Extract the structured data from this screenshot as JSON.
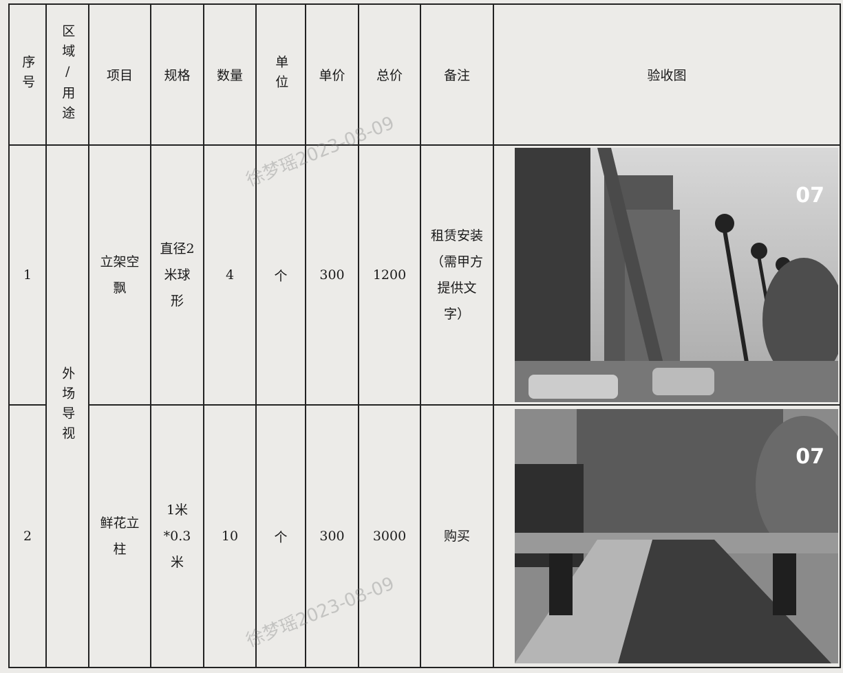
{
  "table": {
    "header": [
      "序号",
      "区域/用途",
      "项目",
      "规格",
      "数量",
      "单位",
      "单价",
      "总价",
      "备注",
      "验收图"
    ],
    "area": "外场导视",
    "rows": [
      {
        "no": 1,
        "item": "立架空飘",
        "spec": "直径2米球形",
        "qty": 4,
        "unit": "个",
        "price": 300,
        "total": 1200,
        "note": "租赁安装（需甲方提供文字）",
        "photo_day": "07"
      },
      {
        "no": 2,
        "item": "鲜花立柱",
        "spec": "1米*0.3米",
        "qty": 10,
        "unit": "个",
        "price": 300,
        "total": 3000,
        "note": "购买",
        "photo_day": "07"
      }
    ]
  },
  "watermark": "徐梦瑶2023-08-09"
}
